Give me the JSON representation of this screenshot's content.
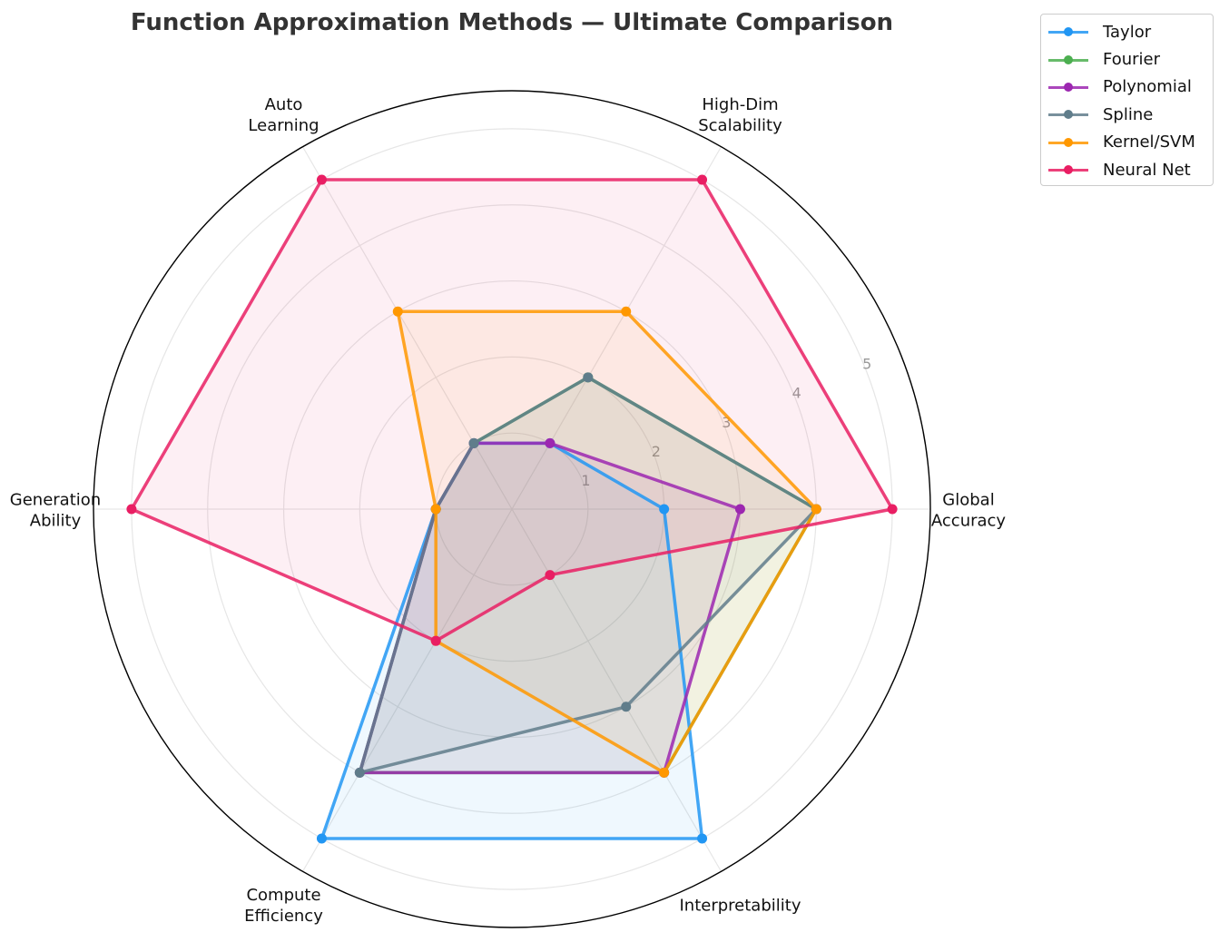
{
  "chart_data": {
    "type": "radar",
    "title": "Function Approximation Methods  —  Ultimate Comparison",
    "axes": [
      "Global\nAccuracy",
      "High-Dim\nScalability",
      "Auto\nLearning",
      "Generation\nAbility",
      "Compute\nEfficiency",
      "Interpretability"
    ],
    "rticks": [
      1,
      2,
      3,
      4,
      5
    ],
    "rlim": [
      0,
      5.5
    ],
    "grid": true,
    "legend_position": "outside top-right",
    "series": [
      {
        "name": "Taylor",
        "color": "#2196F3",
        "values": [
          2,
          1,
          1,
          1,
          5,
          5
        ]
      },
      {
        "name": "Fourier",
        "color": "#4CAF50",
        "values": [
          4,
          2,
          1,
          1,
          4,
          4
        ]
      },
      {
        "name": "Polynomial",
        "color": "#9C27B0",
        "values": [
          3,
          1,
          1,
          1,
          4,
          4
        ]
      },
      {
        "name": "Spline",
        "color": "#607D8B",
        "values": [
          4,
          2,
          1,
          1,
          4,
          3
        ]
      },
      {
        "name": "Kernel/SVM",
        "color": "#FF9800",
        "values": [
          4,
          3,
          3,
          1,
          2,
          4
        ]
      },
      {
        "name": "Neural Net",
        "color": "#E91E63",
        "values": [
          5,
          5,
          5,
          5,
          2,
          1
        ]
      }
    ]
  }
}
